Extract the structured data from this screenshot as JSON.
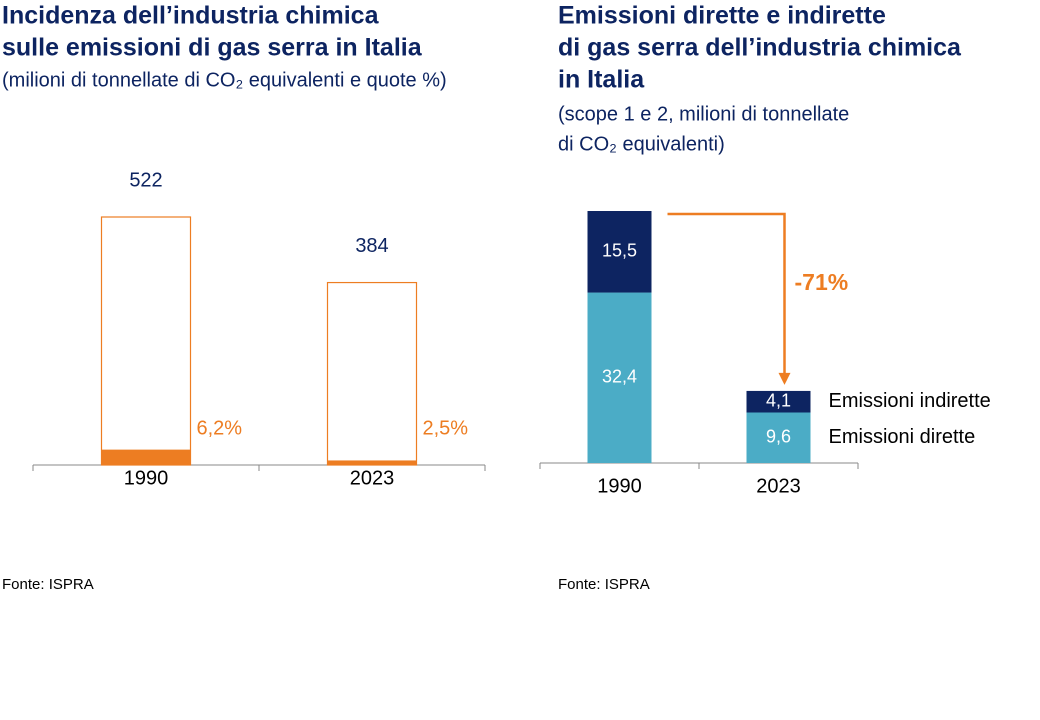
{
  "chart_data": [
    {
      "type": "bar",
      "title": [
        "Incidenza dell’industria chimica",
        "sulle emissioni di gas serra in Italia"
      ],
      "subtitle": [
        "(milioni di tonnellate di CO₂ equivalenti e quote %)"
      ],
      "categories": [
        "1990",
        "2023"
      ],
      "values": [
        522,
        384
      ],
      "share_values": [
        6.2,
        2.5
      ],
      "share_value_labels": [
        "6,2%",
        "2,5%"
      ],
      "color": "#ed7d22",
      "source": "Fonte: ISPRA"
    },
    {
      "type": "stacked_bar",
      "title": [
        "Emissioni dirette e indirette",
        "di gas serra dell’industria chimica",
        "in Italia"
      ],
      "subtitle": [
        "(scope 1 e 2, milioni di tonnellate",
        "di CO₂ equivalenti)"
      ],
      "categories": [
        "1990",
        "2023"
      ],
      "series": [
        {
          "name": "Emissioni dirette",
          "color": "#4bacc6",
          "values": [
            32.4,
            9.6
          ],
          "value_labels": [
            "32,4",
            "9,6"
          ]
        },
        {
          "name": "Emissioni indirette",
          "color": "#0d2461",
          "values": [
            15.5,
            4.1
          ],
          "value_labels": [
            "15,5",
            "4,1"
          ]
        }
      ],
      "annotation": "-71%",
      "annotation_color": "#ed7d22",
      "source": "Fonte: ISPRA"
    }
  ]
}
